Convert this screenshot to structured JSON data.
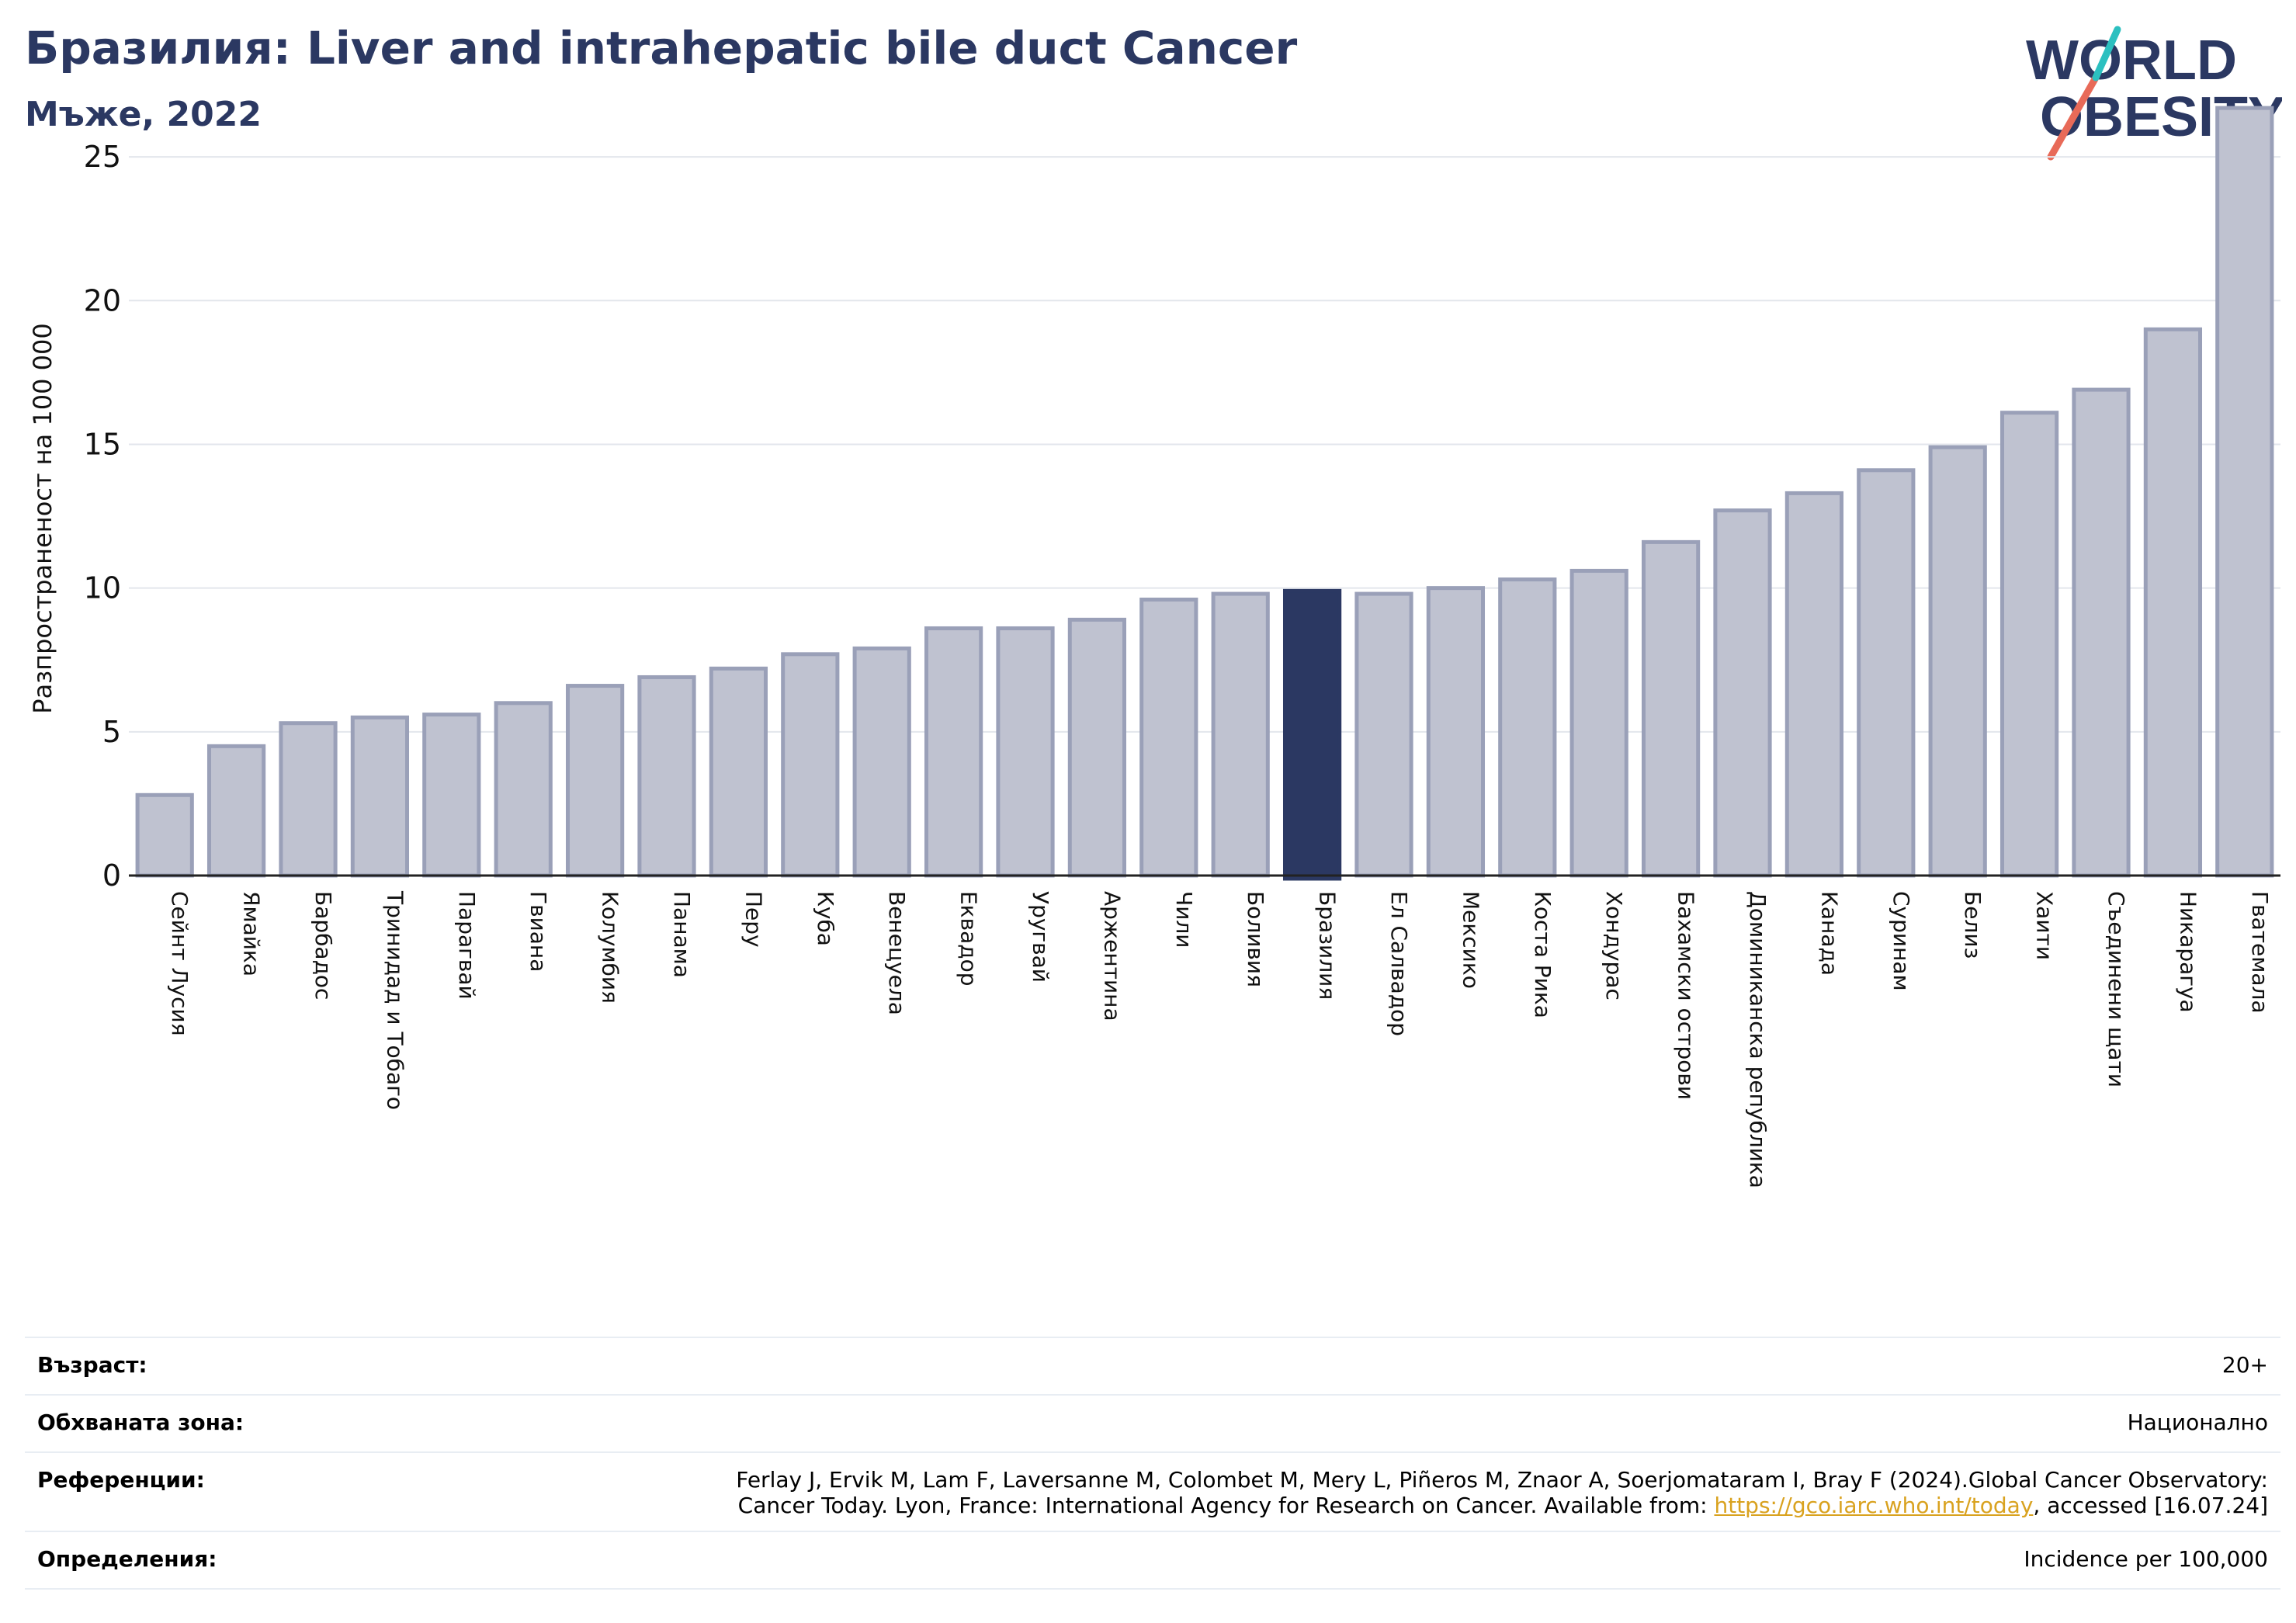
{
  "header": {
    "title": "Бразилия: Liver and intrahepatic bile duct Cancer",
    "subtitle": "Мъже, 2022"
  },
  "logo": {
    "line1": "WORLD",
    "line2": "OBESITY",
    "accent": "#e86a58",
    "accent2": "#2cc0c0"
  },
  "colors": {
    "bar": "#bfc2d0",
    "bar_edge": "#9aa0b8",
    "highlight": "#2b3862",
    "grid": "#e3e6ec"
  },
  "chart_data": {
    "type": "bar",
    "ylabel": "Разпространеност  на 100 000",
    "ylim": [
      0,
      27
    ],
    "yticks": [
      0,
      5,
      10,
      15,
      20,
      25
    ],
    "grid": true,
    "highlight": "Бразилия",
    "categories": [
      "Сейнт Лусия",
      "Ямайка",
      "Барбадос",
      "Тринидад и Тобаго",
      "Парагвай",
      "Гвиана",
      "Колумбия",
      "Панама",
      "Перу",
      "Куба",
      "Венецуела",
      "Еквадор",
      "Уругвай",
      "Аржентина",
      "Чили",
      "Боливия",
      "Бразилия",
      "Ел Салвадор",
      "Мексико",
      "Коста Рика",
      "Хондурас",
      "Бахамски острови",
      "Доминиканска република",
      "Канада",
      "Суринам",
      "Белиз",
      "Хаити",
      "Съединени щати",
      "Никарагуа",
      "Гватемала"
    ],
    "values": [
      2.8,
      4.5,
      5.3,
      5.5,
      5.6,
      6.0,
      6.6,
      6.9,
      7.2,
      7.7,
      7.9,
      8.6,
      8.6,
      8.9,
      9.6,
      9.8,
      9.9,
      9.8,
      10.0,
      10.3,
      10.6,
      11.6,
      12.7,
      13.3,
      14.1,
      14.9,
      16.1,
      16.9,
      19.0,
      26.7
    ]
  },
  "info": {
    "age_label": "Възраст:",
    "age_value": "20+",
    "area_label": "Обхваната зона:",
    "area_value": "Национално",
    "ref_label": "Референции:",
    "ref_text1": "Ferlay J, Ervik M, Lam F, Laversanne M, Colombet M, Mery L, Piñeros M, Znaor A, Soerjomataram I, Bray F (2024).Global Cancer Observatory:",
    "ref_text2": "Cancer Today. Lyon, France: International Agency for Research on Cancer. Available from: ",
    "ref_link": "https://gco.iarc.who.int/today",
    "ref_text3": ", accessed [16.07.24]",
    "def_label": "Определения:",
    "def_value": "Incidence per 100,000"
  }
}
